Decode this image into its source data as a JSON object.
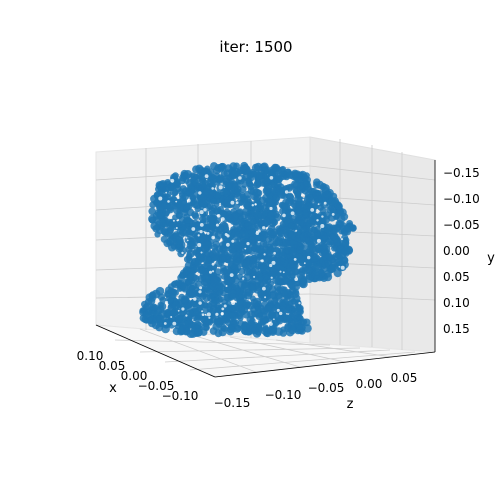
{
  "chart_data": {
    "type": "scatter",
    "projection": "3d",
    "title": "iter: 1500",
    "series": [
      {
        "color": "#1f77b4",
        "marker": "circle",
        "shape": "human head and neck point cloud (profile view, facing +z)"
      }
    ],
    "axes": {
      "x": {
        "label": "x",
        "ticks": [
          "0.10",
          "0.05",
          "0.00",
          "−0.05",
          "−0.10"
        ]
      },
      "z": {
        "label": "z",
        "ticks": [
          "−0.15",
          "−0.10",
          "−0.05",
          "0.00",
          "0.05"
        ]
      },
      "y": {
        "label": "y",
        "ticks": [
          "−0.15",
          "−0.10",
          "−0.05",
          "0.00",
          "0.05",
          "0.10",
          "0.15"
        ],
        "inverted": true
      }
    },
    "grid": true
  }
}
